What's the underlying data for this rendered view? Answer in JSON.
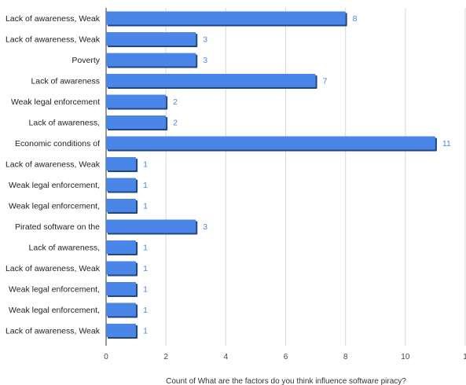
{
  "chart_data": {
    "type": "bar",
    "orientation": "horizontal",
    "categories": [
      "Lack of awareness, Weak",
      "Lack of awareness, Weak",
      "Poverty",
      "Lack of awareness",
      "Weak legal enforcement",
      "Lack of awareness,",
      "Economic conditions of",
      "Lack of awareness, Weak",
      "Weak legal enforcement,",
      "Weak legal enforcement,",
      "Pirated software on the",
      "Lack of awareness,",
      "Lack of awareness, Weak",
      "Weak legal enforcement,",
      "Weak legal enforcement,",
      "Lack of awareness, Weak"
    ],
    "values": [
      8,
      3,
      3,
      7,
      2,
      2,
      11,
      1,
      1,
      1,
      3,
      1,
      1,
      1,
      1,
      1
    ],
    "xlabel": "Count of What are the factors do you think influence software piracy?",
    "ylabel": "",
    "xlim": [
      0,
      12
    ],
    "x_ticks": [
      "0",
      "2",
      "4",
      "6",
      "8",
      "10",
      "1"
    ],
    "grid": "vertical",
    "legend": "none",
    "bar_color": "#4a86e8",
    "bar_shadow_color": "#24477f",
    "label_color": "#4a86e8"
  }
}
